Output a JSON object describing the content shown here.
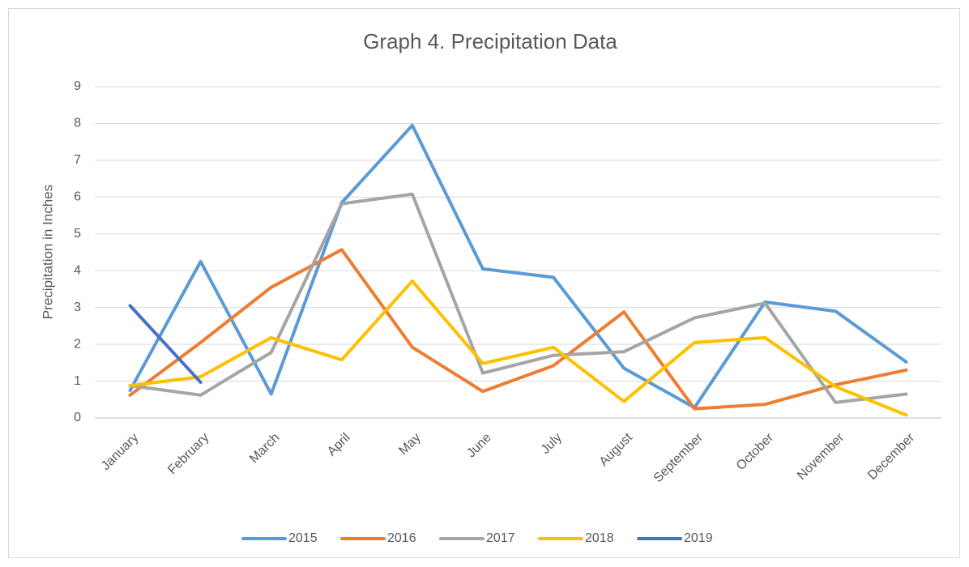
{
  "chart_data": {
    "type": "line",
    "title": "Graph 4. Precipitation Data",
    "y_label": "Precipitation in Inches",
    "categories": [
      "January",
      "February",
      "March",
      "April",
      "May",
      "June",
      "July",
      "August",
      "September",
      "October",
      "November",
      "December"
    ],
    "series": [
      {
        "name": "2015",
        "color": "#5b9bd5",
        "values": [
          0.75,
          4.25,
          0.65,
          5.85,
          7.95,
          4.05,
          3.82,
          1.35,
          0.28,
          3.15,
          2.9,
          1.52
        ]
      },
      {
        "name": "2016",
        "color": "#ed7d31",
        "values": [
          0.62,
          2.05,
          3.55,
          4.57,
          1.92,
          0.72,
          1.42,
          2.88,
          0.25,
          0.37,
          0.9,
          1.3
        ]
      },
      {
        "name": "2017",
        "color": "#a5a5a5",
        "values": [
          0.88,
          0.62,
          1.78,
          5.82,
          6.08,
          1.22,
          1.7,
          1.8,
          2.72,
          3.12,
          0.42,
          0.65
        ]
      },
      {
        "name": "2018",
        "color": "#ffc000",
        "values": [
          0.88,
          1.12,
          2.18,
          1.58,
          3.72,
          1.48,
          1.92,
          0.45,
          2.05,
          2.18,
          0.85,
          0.08
        ]
      },
      {
        "name": "2019",
        "color": "#4472c4",
        "values": [
          3.05,
          0.97,
          null,
          null,
          null,
          null,
          null,
          null,
          null,
          null,
          null,
          null
        ]
      }
    ],
    "ylim": [
      0,
      9
    ],
    "yticks": [
      0,
      1,
      2,
      3,
      4,
      5,
      6,
      7,
      8,
      9
    ],
    "grid": true,
    "legend": "bottom"
  }
}
